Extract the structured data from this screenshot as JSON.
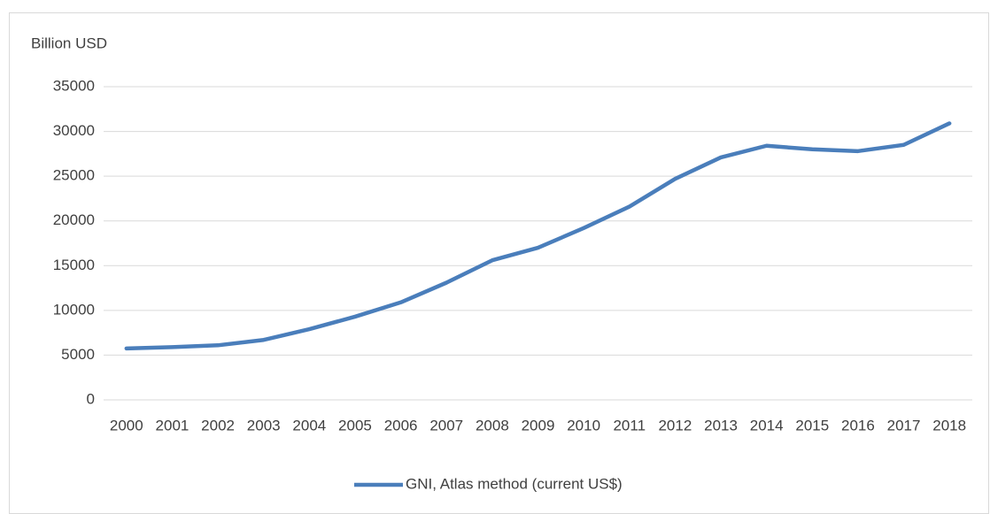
{
  "chart_data": {
    "type": "line",
    "y_axis_label": "Billion USD",
    "categories": [
      "2000",
      "2001",
      "2002",
      "2003",
      "2004",
      "2005",
      "2006",
      "2007",
      "2008",
      "2009",
      "2010",
      "2011",
      "2012",
      "2013",
      "2014",
      "2015",
      "2016",
      "2017",
      "2018"
    ],
    "series": [
      {
        "name": "GNI, Atlas method (current US$)",
        "color": "#4a7ebb",
        "values": [
          5750,
          5900,
          6100,
          6700,
          7900,
          9300,
          10900,
          13100,
          15600,
          17000,
          19200,
          21600,
          24700,
          27100,
          28400,
          28000,
          27800,
          28500,
          30900
        ]
      }
    ],
    "ylim": [
      0,
      35000
    ],
    "yticks": [
      0,
      5000,
      10000,
      15000,
      20000,
      25000,
      30000,
      35000
    ],
    "grid": true,
    "legend": "bottom"
  }
}
